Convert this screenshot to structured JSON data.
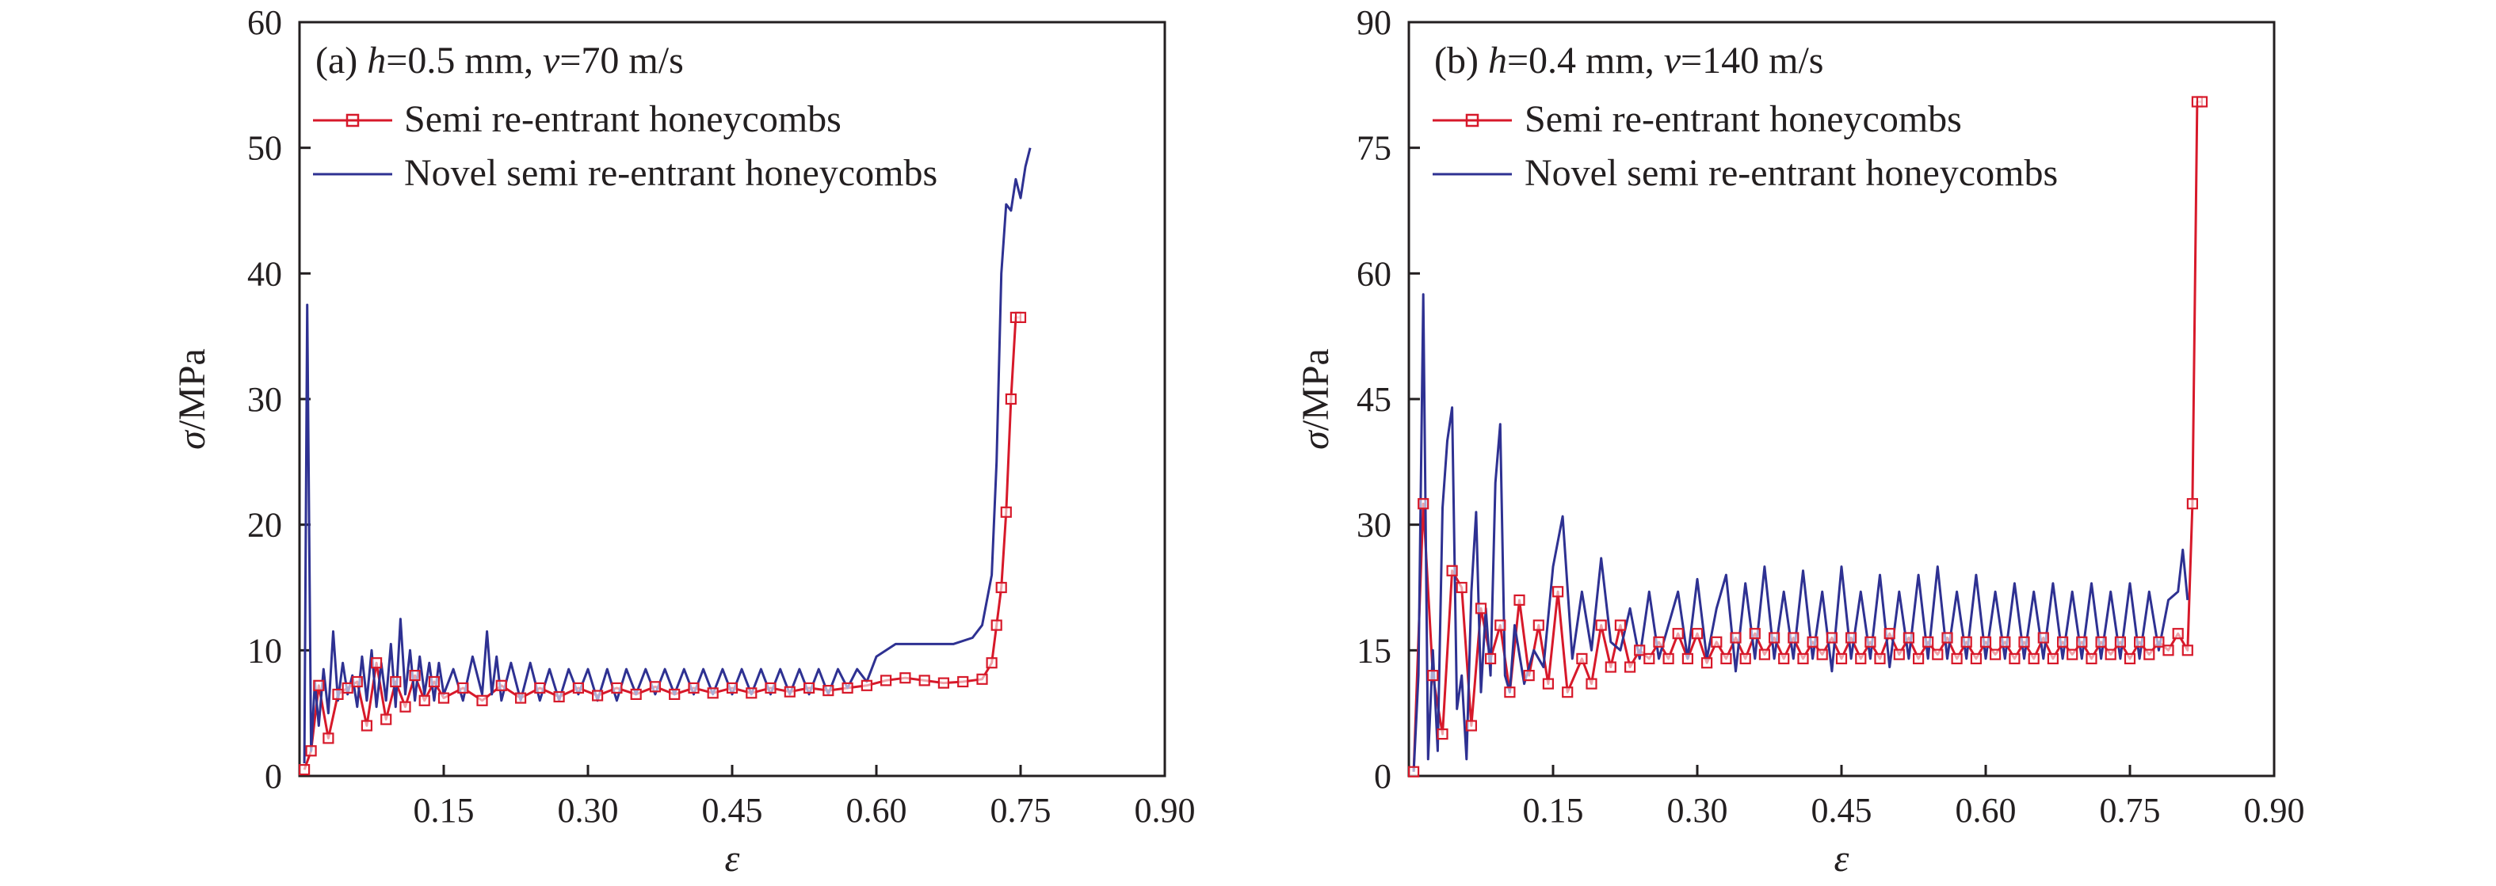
{
  "chart_data": [
    {
      "type": "line",
      "title": "(a) h=0.5 mm, v=70 m/s",
      "title_parts": {
        "prefix": "(a) ",
        "h_sym": "h",
        "h_val": "=0.5 mm, ",
        "v_sym": "v",
        "v_val": "=70 m/s"
      },
      "xlabel": "ε",
      "ylabel_sym": "σ",
      "ylabel_unit": "/MPa",
      "xlim": [
        0,
        0.9
      ],
      "ylim": [
        0,
        60
      ],
      "xticks": [
        0.15,
        0.3,
        0.45,
        0.6,
        0.75,
        0.9
      ],
      "xtick_labels": [
        "0.15",
        "0.30",
        "0.45",
        "0.60",
        "0.75",
        "0.90"
      ],
      "yticks": [
        0,
        10,
        20,
        30,
        40,
        50,
        60
      ],
      "ytick_labels": [
        "0",
        "10",
        "20",
        "30",
        "40",
        "50",
        "60"
      ],
      "legend_position": "top-left",
      "series": [
        {
          "name": "Semi re-entrant honeycombs",
          "color": "#d7192a",
          "marker": "square",
          "x": [
            0.005,
            0.012,
            0.02,
            0.03,
            0.04,
            0.05,
            0.06,
            0.07,
            0.08,
            0.09,
            0.1,
            0.11,
            0.12,
            0.13,
            0.14,
            0.15,
            0.17,
            0.19,
            0.21,
            0.23,
            0.25,
            0.27,
            0.29,
            0.31,
            0.33,
            0.35,
            0.37,
            0.39,
            0.41,
            0.43,
            0.45,
            0.47,
            0.49,
            0.51,
            0.53,
            0.55,
            0.57,
            0.59,
            0.61,
            0.63,
            0.65,
            0.67,
            0.69,
            0.71,
            0.72,
            0.725,
            0.73,
            0.735,
            0.74,
            0.745,
            0.75
          ],
          "y": [
            0.5,
            2.0,
            7.2,
            3.0,
            6.5,
            7.0,
            7.5,
            4.0,
            9.0,
            4.5,
            7.5,
            5.5,
            8.0,
            6.0,
            7.5,
            6.2,
            7.0,
            6.0,
            7.2,
            6.2,
            7.0,
            6.3,
            7.0,
            6.4,
            7.0,
            6.5,
            7.1,
            6.5,
            7.0,
            6.6,
            7.0,
            6.6,
            7.0,
            6.7,
            7.0,
            6.8,
            7.0,
            7.2,
            7.6,
            7.8,
            7.6,
            7.4,
            7.5,
            7.7,
            9.0,
            12.0,
            15.0,
            21.0,
            30.0,
            36.5,
            36.5
          ]
        },
        {
          "name": "Novel semi re-entrant honeycombs",
          "color": "#2e3192",
          "marker": "none",
          "x": [
            0.005,
            0.008,
            0.012,
            0.016,
            0.02,
            0.025,
            0.03,
            0.035,
            0.04,
            0.045,
            0.05,
            0.055,
            0.06,
            0.065,
            0.07,
            0.075,
            0.08,
            0.085,
            0.09,
            0.095,
            0.1,
            0.105,
            0.11,
            0.115,
            0.12,
            0.125,
            0.13,
            0.135,
            0.14,
            0.145,
            0.15,
            0.16,
            0.17,
            0.18,
            0.19,
            0.195,
            0.2,
            0.205,
            0.21,
            0.22,
            0.23,
            0.24,
            0.25,
            0.26,
            0.27,
            0.28,
            0.29,
            0.3,
            0.31,
            0.32,
            0.33,
            0.34,
            0.35,
            0.36,
            0.37,
            0.38,
            0.39,
            0.4,
            0.41,
            0.42,
            0.43,
            0.44,
            0.45,
            0.46,
            0.47,
            0.48,
            0.49,
            0.5,
            0.51,
            0.52,
            0.53,
            0.54,
            0.55,
            0.56,
            0.57,
            0.58,
            0.59,
            0.6,
            0.62,
            0.64,
            0.66,
            0.68,
            0.7,
            0.71,
            0.72,
            0.725,
            0.73,
            0.735,
            0.74,
            0.745,
            0.75,
            0.755,
            0.76
          ],
          "y": [
            1.0,
            37.5,
            2.0,
            7.5,
            4.0,
            8.5,
            5.0,
            11.5,
            6.0,
            9.0,
            6.5,
            8.0,
            5.5,
            9.5,
            6.0,
            10.0,
            5.5,
            9.0,
            6.0,
            10.5,
            5.5,
            12.5,
            6.5,
            10.0,
            6.0,
            9.5,
            6.5,
            9.0,
            6.0,
            9.0,
            6.5,
            8.5,
            6.0,
            9.5,
            6.5,
            11.5,
            6.5,
            9.5,
            6.0,
            9.0,
            6.0,
            9.0,
            6.0,
            8.5,
            6.0,
            8.5,
            6.5,
            8.5,
            6.0,
            8.5,
            6.0,
            8.5,
            6.5,
            8.5,
            6.5,
            8.5,
            6.5,
            8.5,
            6.5,
            8.5,
            6.5,
            8.5,
            6.5,
            8.5,
            6.5,
            8.5,
            6.5,
            8.5,
            6.5,
            8.5,
            6.5,
            8.5,
            6.5,
            8.5,
            7.0,
            8.5,
            7.5,
            9.5,
            10.5,
            10.5,
            10.5,
            10.5,
            11.0,
            12.0,
            16.0,
            25.0,
            40.0,
            45.5,
            45.0,
            47.5,
            46.0,
            48.5,
            50.0
          ]
        }
      ]
    },
    {
      "type": "line",
      "title": "(b) h=0.4 mm, v=140 m/s",
      "title_parts": {
        "prefix": "(b) ",
        "h_sym": "h",
        "h_val": "=0.4 mm, ",
        "v_sym": "v",
        "v_val": "=140 m/s"
      },
      "xlabel": "ε",
      "ylabel_sym": "σ",
      "ylabel_unit": "/MPa",
      "xlim": [
        0,
        0.9
      ],
      "ylim": [
        0,
        90
      ],
      "xticks": [
        0.15,
        0.3,
        0.45,
        0.6,
        0.75,
        0.9
      ],
      "xtick_labels": [
        "0.15",
        "0.30",
        "0.45",
        "0.60",
        "0.75",
        "0.90"
      ],
      "yticks": [
        0,
        15,
        30,
        45,
        60,
        75,
        90
      ],
      "ytick_labels": [
        "0",
        "15",
        "30",
        "45",
        "60",
        "75",
        "90"
      ],
      "legend_position": "top-left",
      "series": [
        {
          "name": "Semi re-entrant honeycombs",
          "color": "#d7192a",
          "marker": "square",
          "x": [
            0.005,
            0.015,
            0.025,
            0.035,
            0.045,
            0.055,
            0.065,
            0.075,
            0.085,
            0.095,
            0.105,
            0.115,
            0.125,
            0.135,
            0.145,
            0.155,
            0.165,
            0.18,
            0.19,
            0.2,
            0.21,
            0.22,
            0.23,
            0.24,
            0.25,
            0.26,
            0.27,
            0.28,
            0.29,
            0.3,
            0.31,
            0.32,
            0.33,
            0.34,
            0.35,
            0.36,
            0.37,
            0.38,
            0.39,
            0.4,
            0.41,
            0.42,
            0.43,
            0.44,
            0.45,
            0.46,
            0.47,
            0.48,
            0.49,
            0.5,
            0.51,
            0.52,
            0.53,
            0.54,
            0.55,
            0.56,
            0.57,
            0.58,
            0.59,
            0.6,
            0.61,
            0.62,
            0.63,
            0.64,
            0.65,
            0.66,
            0.67,
            0.68,
            0.69,
            0.7,
            0.71,
            0.72,
            0.73,
            0.74,
            0.75,
            0.76,
            0.77,
            0.78,
            0.79,
            0.8,
            0.81,
            0.815,
            0.82,
            0.825
          ],
          "y": [
            0.5,
            32.5,
            12.0,
            5.0,
            24.5,
            22.5,
            6.0,
            20.0,
            14.0,
            18.0,
            10.0,
            21.0,
            12.0,
            18.0,
            11.0,
            22.0,
            10.0,
            14.0,
            11.0,
            18.0,
            13.0,
            18.0,
            13.0,
            15.0,
            14.0,
            16.0,
            14.0,
            17.0,
            14.0,
            17.0,
            13.5,
            16.0,
            14.0,
            16.5,
            14.0,
            17.0,
            14.5,
            16.5,
            14.0,
            16.5,
            14.0,
            16.0,
            14.5,
            16.5,
            14.0,
            16.5,
            14.0,
            16.0,
            14.0,
            17.0,
            14.5,
            16.5,
            14.0,
            16.0,
            14.5,
            16.5,
            14.0,
            16.0,
            14.0,
            16.0,
            14.5,
            16.0,
            14.0,
            16.0,
            14.0,
            16.5,
            14.0,
            16.0,
            14.5,
            16.0,
            14.0,
            16.0,
            14.5,
            16.0,
            14.0,
            16.0,
            14.5,
            16.0,
            15.0,
            17.0,
            15.0,
            32.5,
            80.5,
            80.5
          ]
        },
        {
          "name": "Novel semi re-entrant honeycombs",
          "color": "#2e3192",
          "marker": "none",
          "x": [
            0.005,
            0.01,
            0.015,
            0.02,
            0.025,
            0.03,
            0.035,
            0.04,
            0.045,
            0.05,
            0.055,
            0.06,
            0.065,
            0.07,
            0.075,
            0.08,
            0.085,
            0.09,
            0.095,
            0.1,
            0.105,
            0.11,
            0.12,
            0.13,
            0.14,
            0.15,
            0.16,
            0.17,
            0.18,
            0.19,
            0.2,
            0.21,
            0.22,
            0.23,
            0.24,
            0.25,
            0.26,
            0.27,
            0.28,
            0.29,
            0.3,
            0.31,
            0.32,
            0.33,
            0.34,
            0.35,
            0.36,
            0.37,
            0.38,
            0.39,
            0.4,
            0.41,
            0.42,
            0.43,
            0.44,
            0.45,
            0.46,
            0.47,
            0.48,
            0.49,
            0.5,
            0.51,
            0.52,
            0.53,
            0.54,
            0.55,
            0.56,
            0.57,
            0.58,
            0.59,
            0.6,
            0.61,
            0.62,
            0.63,
            0.64,
            0.65,
            0.66,
            0.67,
            0.68,
            0.69,
            0.7,
            0.71,
            0.72,
            0.73,
            0.74,
            0.75,
            0.76,
            0.77,
            0.78,
            0.79,
            0.8,
            0.805,
            0.81
          ],
          "y": [
            0.5,
            12.0,
            57.5,
            2.0,
            15.0,
            3.0,
            32.0,
            40.0,
            44.0,
            8.0,
            12.0,
            2.0,
            22.0,
            31.5,
            10.0,
            20.0,
            12.0,
            35.0,
            42.0,
            12.0,
            10.0,
            18.0,
            11.0,
            15.0,
            13.0,
            25.0,
            31.0,
            14.0,
            22.0,
            15.0,
            26.0,
            16.0,
            15.0,
            20.0,
            14.0,
            22.0,
            14.0,
            18.0,
            22.0,
            14.0,
            23.5,
            14.0,
            20.0,
            24.0,
            12.5,
            23.0,
            14.0,
            25.0,
            14.0,
            22.0,
            14.0,
            24.5,
            14.0,
            22.0,
            12.5,
            25.0,
            14.0,
            22.0,
            14.0,
            24.0,
            13.0,
            22.0,
            14.0,
            24.0,
            14.0,
            25.0,
            14.0,
            22.0,
            14.0,
            24.0,
            14.0,
            22.0,
            14.0,
            23.0,
            14.0,
            22.0,
            14.0,
            23.0,
            14.0,
            22.0,
            14.0,
            23.0,
            14.0,
            22.0,
            14.0,
            23.0,
            14.0,
            22.0,
            15.0,
            21.0,
            22.0,
            27.0,
            21.0
          ]
        }
      ]
    }
  ]
}
